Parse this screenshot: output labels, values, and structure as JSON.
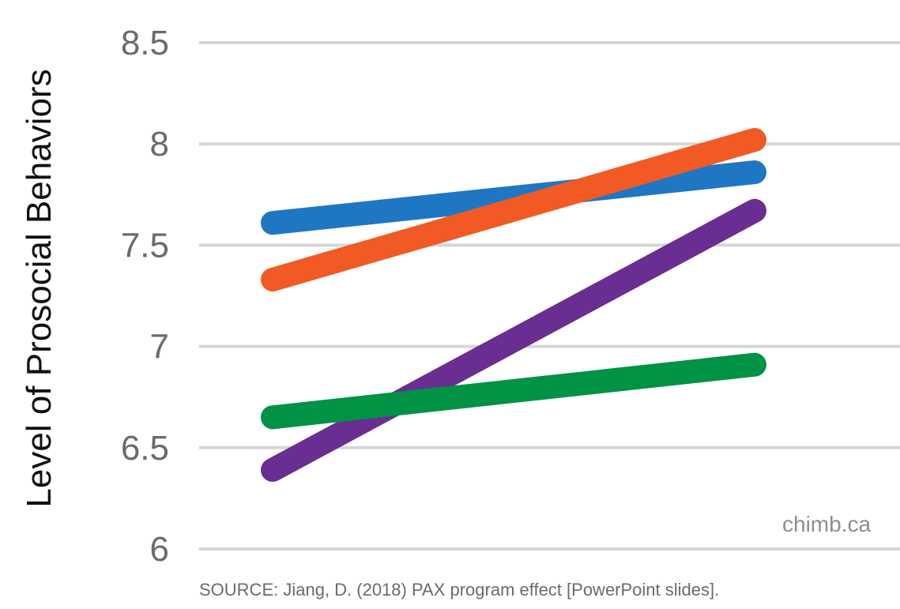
{
  "chart_data": {
    "type": "line",
    "title": "",
    "xlabel": "",
    "ylabel": "Level of Prosocial Behaviors",
    "ylim": [
      6,
      8.5
    ],
    "yticks": [
      6,
      6.5,
      7,
      7.5,
      8,
      8.5
    ],
    "ytick_labels": [
      "6",
      "6.5",
      "7",
      "7.5",
      "8",
      "8.5"
    ],
    "grid": true,
    "x": [
      0,
      1
    ],
    "series": [
      {
        "color": "#1f77c4",
        "values": [
          7.61,
          7.86
        ]
      },
      {
        "color": "#f15a24",
        "values": [
          7.33,
          8.02
        ]
      },
      {
        "color": "#6a2d91",
        "values": [
          6.39,
          7.67
        ]
      },
      {
        "color": "#009245",
        "values": [
          6.65,
          6.91
        ]
      }
    ]
  },
  "watermark": "chimb.ca",
  "source": "SOURCE: Jiang, D. (2018) PAX program effect [PowerPoint slides]."
}
